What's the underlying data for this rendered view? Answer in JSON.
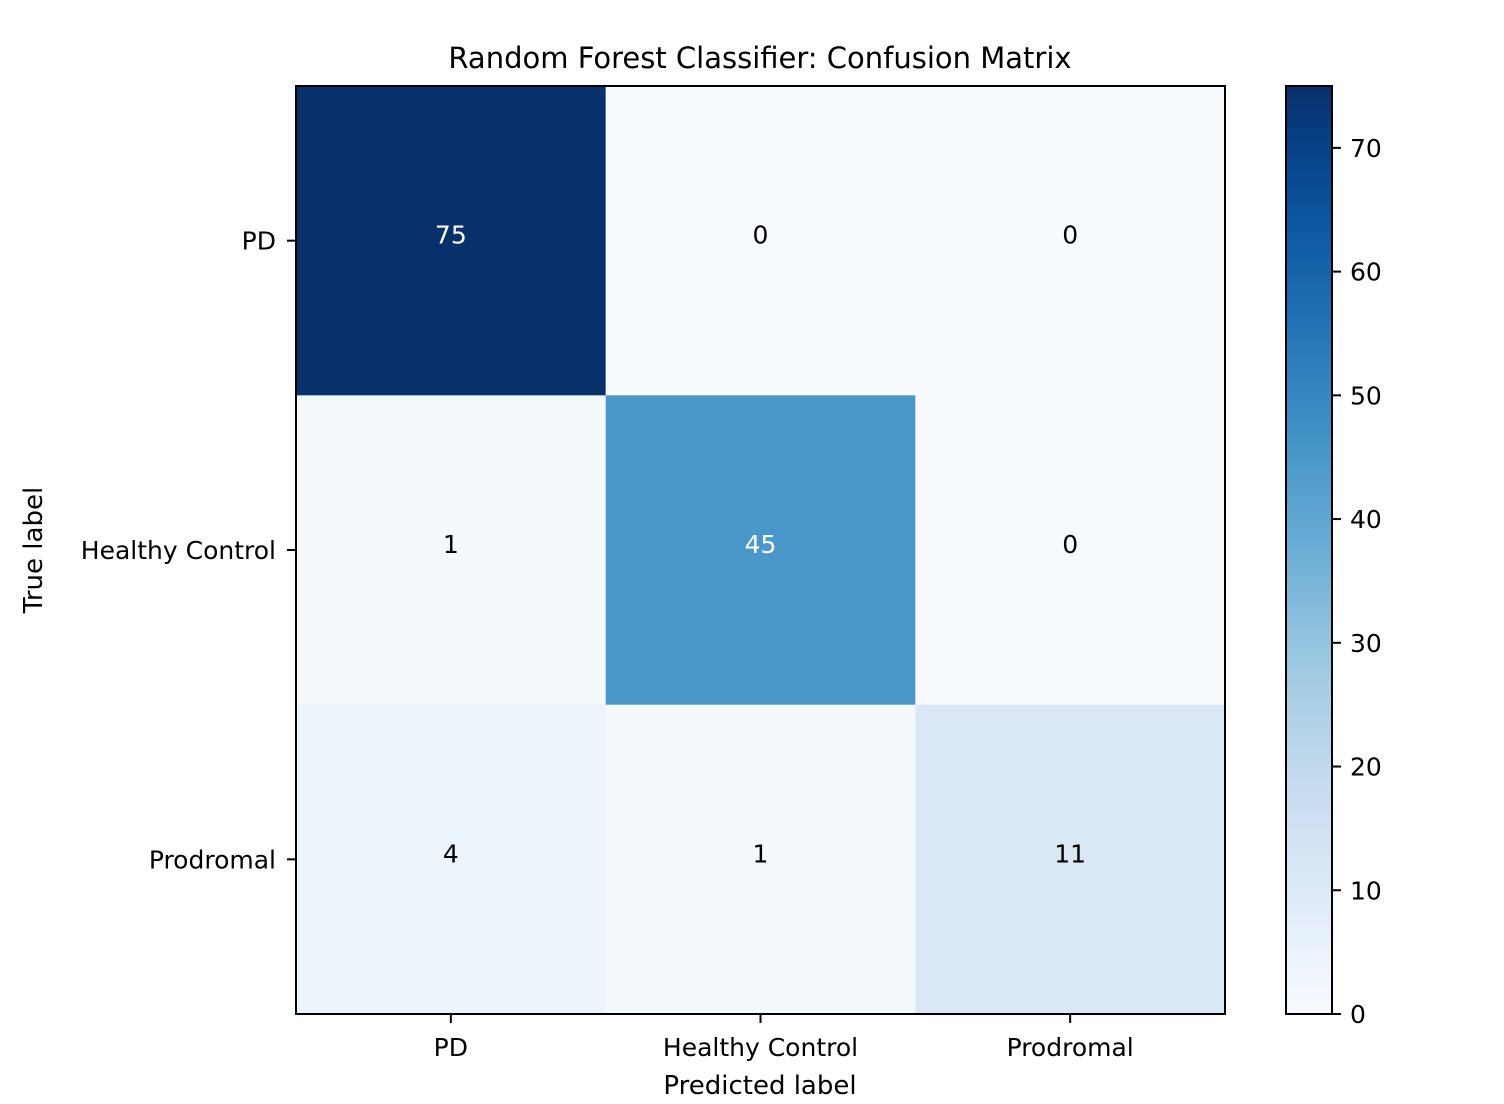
{
  "chart_data": {
    "type": "heatmap",
    "title": "Random Forest Classifier: Confusion Matrix",
    "xlabel": "Predicted label",
    "ylabel": "True label",
    "x_categories": [
      "PD",
      "Healthy Control",
      "Prodromal"
    ],
    "y_categories": [
      "PD",
      "Healthy Control",
      "Prodromal"
    ],
    "matrix": [
      [
        75,
        0,
        0
      ],
      [
        1,
        45,
        0
      ],
      [
        4,
        1,
        11
      ]
    ],
    "colormap": "Blues",
    "colorbar": {
      "min": 0,
      "max": 75,
      "ticks": [
        0,
        10,
        20,
        30,
        40,
        50,
        60,
        70
      ]
    },
    "text_color_dark": "#000000",
    "text_color_light": "#ffffff"
  }
}
